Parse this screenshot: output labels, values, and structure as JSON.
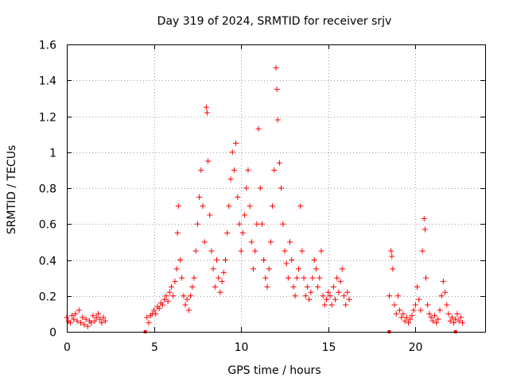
{
  "chart_data": {
    "type": "scatter",
    "title": "Day 319 of 2024, SRMTID for receiver srjv",
    "xlabel": "GPS time / hours",
    "ylabel": "SRMTID / TECUs",
    "xlim": [
      0,
      24
    ],
    "ylim": [
      0,
      1.6
    ],
    "grid": true,
    "marker": "plus",
    "color": "#ff0000",
    "xticks": [
      {
        "value": 0,
        "label": "0"
      },
      {
        "value": 5,
        "label": "5"
      },
      {
        "value": 10,
        "label": "10"
      },
      {
        "value": 15,
        "label": "15"
      },
      {
        "value": 20,
        "label": "20"
      }
    ],
    "yticks": [
      {
        "value": 0,
        "label": "0"
      },
      {
        "value": 0.2,
        "label": "0.2"
      },
      {
        "value": 0.4,
        "label": "0.4"
      },
      {
        "value": 0.6,
        "label": "0.6"
      },
      {
        "value": 0.8,
        "label": "0.8"
      },
      {
        "value": 1.0,
        "label": "1"
      },
      {
        "value": 1.2,
        "label": "1.2"
      },
      {
        "value": 1.4,
        "label": "1.4"
      },
      {
        "value": 1.6,
        "label": "1.6"
      }
    ],
    "series": [
      {
        "name": "SRMTID",
        "points": [
          [
            0.0,
            0.08
          ],
          [
            0.1,
            0.06
          ],
          [
            0.2,
            0.05
          ],
          [
            0.3,
            0.09
          ],
          [
            0.4,
            0.07
          ],
          [
            0.5,
            0.1
          ],
          [
            0.6,
            0.06
          ],
          [
            0.7,
            0.12
          ],
          [
            0.8,
            0.05
          ],
          [
            0.9,
            0.08
          ],
          [
            1.0,
            0.04
          ],
          [
            1.1,
            0.07
          ],
          [
            1.2,
            0.03
          ],
          [
            1.3,
            0.06
          ],
          [
            1.4,
            0.05
          ],
          [
            1.5,
            0.09
          ],
          [
            1.6,
            0.06
          ],
          [
            1.7,
            0.08
          ],
          [
            1.8,
            0.1
          ],
          [
            1.9,
            0.07
          ],
          [
            2.0,
            0.05
          ],
          [
            2.1,
            0.08
          ],
          [
            2.2,
            0.06
          ],
          [
            4.6,
            0.08
          ],
          [
            4.7,
            0.05
          ],
          [
            4.8,
            0.09
          ],
          [
            4.9,
            0.1
          ],
          [
            5.0,
            0.12
          ],
          [
            5.1,
            0.1
          ],
          [
            5.2,
            0.14
          ],
          [
            5.3,
            0.13
          ],
          [
            5.4,
            0.16
          ],
          [
            5.5,
            0.15
          ],
          [
            5.6,
            0.18
          ],
          [
            5.7,
            0.2
          ],
          [
            5.8,
            0.17
          ],
          [
            5.9,
            0.22
          ],
          [
            6.0,
            0.25
          ],
          [
            6.1,
            0.2
          ],
          [
            6.2,
            0.28
          ],
          [
            6.3,
            0.35
          ],
          [
            6.35,
            0.55
          ],
          [
            6.4,
            0.7
          ],
          [
            6.5,
            0.4
          ],
          [
            6.6,
            0.3
          ],
          [
            6.7,
            0.2
          ],
          [
            6.8,
            0.15
          ],
          [
            6.9,
            0.18
          ],
          [
            7.0,
            0.12
          ],
          [
            7.1,
            0.2
          ],
          [
            7.2,
            0.25
          ],
          [
            7.3,
            0.3
          ],
          [
            7.4,
            0.45
          ],
          [
            7.5,
            0.6
          ],
          [
            7.6,
            0.75
          ],
          [
            7.7,
            0.9
          ],
          [
            7.8,
            0.7
          ],
          [
            7.9,
            0.5
          ],
          [
            8.0,
            1.25
          ],
          [
            8.05,
            1.22
          ],
          [
            8.1,
            0.95
          ],
          [
            8.2,
            0.65
          ],
          [
            8.3,
            0.45
          ],
          [
            8.4,
            0.35
          ],
          [
            8.5,
            0.25
          ],
          [
            8.6,
            0.4
          ],
          [
            8.7,
            0.3
          ],
          [
            8.8,
            0.22
          ],
          [
            8.9,
            0.28
          ],
          [
            9.0,
            0.33
          ],
          [
            9.1,
            0.4
          ],
          [
            9.2,
            0.55
          ],
          [
            9.3,
            0.7
          ],
          [
            9.4,
            0.85
          ],
          [
            9.5,
            1.0
          ],
          [
            9.6,
            0.9
          ],
          [
            9.7,
            1.05
          ],
          [
            9.8,
            0.75
          ],
          [
            9.9,
            0.6
          ],
          [
            10.0,
            0.45
          ],
          [
            10.1,
            0.55
          ],
          [
            10.2,
            0.65
          ],
          [
            10.3,
            0.8
          ],
          [
            10.4,
            0.9
          ],
          [
            10.5,
            0.7
          ],
          [
            10.6,
            0.5
          ],
          [
            10.7,
            0.35
          ],
          [
            10.8,
            0.45
          ],
          [
            10.9,
            0.6
          ],
          [
            11.0,
            1.13
          ],
          [
            11.1,
            0.8
          ],
          [
            11.2,
            0.6
          ],
          [
            11.3,
            0.4
          ],
          [
            11.4,
            0.3
          ],
          [
            11.5,
            0.25
          ],
          [
            11.6,
            0.35
          ],
          [
            11.7,
            0.5
          ],
          [
            11.8,
            0.7
          ],
          [
            11.9,
            0.9
          ],
          [
            12.0,
            1.47
          ],
          [
            12.05,
            1.35
          ],
          [
            12.1,
            1.18
          ],
          [
            12.2,
            0.94
          ],
          [
            12.3,
            0.8
          ],
          [
            12.4,
            0.6
          ],
          [
            12.5,
            0.45
          ],
          [
            12.6,
            0.38
          ],
          [
            12.7,
            0.3
          ],
          [
            12.8,
            0.5
          ],
          [
            12.9,
            0.4
          ],
          [
            13.0,
            0.25
          ],
          [
            13.1,
            0.2
          ],
          [
            13.2,
            0.3
          ],
          [
            13.3,
            0.35
          ],
          [
            13.4,
            0.7
          ],
          [
            13.5,
            0.45
          ],
          [
            13.6,
            0.3
          ],
          [
            13.7,
            0.2
          ],
          [
            13.8,
            0.25
          ],
          [
            13.9,
            0.18
          ],
          [
            14.0,
            0.22
          ],
          [
            14.1,
            0.3
          ],
          [
            14.2,
            0.4
          ],
          [
            14.3,
            0.35
          ],
          [
            14.4,
            0.25
          ],
          [
            14.5,
            0.3
          ],
          [
            14.6,
            0.45
          ],
          [
            14.7,
            0.2
          ],
          [
            14.8,
            0.15
          ],
          [
            14.9,
            0.18
          ],
          [
            15.0,
            0.22
          ],
          [
            15.1,
            0.2
          ],
          [
            15.2,
            0.15
          ],
          [
            15.3,
            0.25
          ],
          [
            15.4,
            0.18
          ],
          [
            15.5,
            0.3
          ],
          [
            15.6,
            0.22
          ],
          [
            15.7,
            0.28
          ],
          [
            15.8,
            0.35
          ],
          [
            15.9,
            0.2
          ],
          [
            16.0,
            0.15
          ],
          [
            16.1,
            0.22
          ],
          [
            16.2,
            0.18
          ],
          [
            18.5,
            0.2
          ],
          [
            18.6,
            0.45
          ],
          [
            18.65,
            0.42
          ],
          [
            18.7,
            0.35
          ],
          [
            18.8,
            0.15
          ],
          [
            18.9,
            0.1
          ],
          [
            19.0,
            0.2
          ],
          [
            19.1,
            0.12
          ],
          [
            19.2,
            0.08
          ],
          [
            19.3,
            0.1
          ],
          [
            19.4,
            0.06
          ],
          [
            19.5,
            0.08
          ],
          [
            19.6,
            0.05
          ],
          [
            19.7,
            0.07
          ],
          [
            19.8,
            0.09
          ],
          [
            19.9,
            0.12
          ],
          [
            20.0,
            0.15
          ],
          [
            20.1,
            0.25
          ],
          [
            20.2,
            0.18
          ],
          [
            20.3,
            0.12
          ],
          [
            20.4,
            0.45
          ],
          [
            20.5,
            0.63
          ],
          [
            20.55,
            0.57
          ],
          [
            20.6,
            0.3
          ],
          [
            20.7,
            0.15
          ],
          [
            20.8,
            0.1
          ],
          [
            20.9,
            0.08
          ],
          [
            21.0,
            0.06
          ],
          [
            21.1,
            0.09
          ],
          [
            21.2,
            0.05
          ],
          [
            21.3,
            0.07
          ],
          [
            21.4,
            0.12
          ],
          [
            21.5,
            0.2
          ],
          [
            21.6,
            0.28
          ],
          [
            21.7,
            0.22
          ],
          [
            21.8,
            0.15
          ],
          [
            21.9,
            0.1
          ],
          [
            22.0,
            0.06
          ],
          [
            22.1,
            0.08
          ],
          [
            22.2,
            0.05
          ],
          [
            22.3,
            0.07
          ],
          [
            22.4,
            0.1
          ],
          [
            22.5,
            0.06
          ],
          [
            22.6,
            0.08
          ],
          [
            22.7,
            0.05
          ]
        ],
        "baseline_markers": [
          4.5,
          18.5,
          22.3
        ]
      }
    ]
  }
}
